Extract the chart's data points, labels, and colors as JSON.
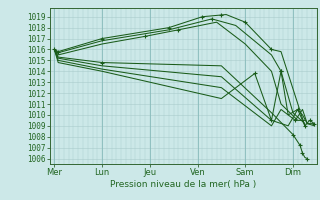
{
  "bg_color": "#cce8e8",
  "grid_color_minor": "#aacccc",
  "grid_color_major": "#88bbbb",
  "line_color": "#1a5c1a",
  "ylabel_values": [
    1006,
    1007,
    1008,
    1009,
    1010,
    1011,
    1012,
    1013,
    1014,
    1015,
    1016,
    1017,
    1018,
    1019
  ],
  "ylim": [
    1005.5,
    1019.8
  ],
  "xlabel": "Pression niveau de la mer( hPa )",
  "xtick_labels": [
    "Mer",
    "Lun",
    "Jeu",
    "Ven",
    "Sam",
    "Dim"
  ],
  "xtick_positions": [
    0,
    1,
    2,
    3,
    4,
    5
  ],
  "xlim": [
    -0.1,
    5.5
  ],
  "lines": [
    {
      "x": [
        0.0,
        0.08,
        1.0,
        2.4,
        3.1,
        3.6,
        4.0,
        4.55,
        4.75,
        5.25
      ],
      "y": [
        1016.0,
        1015.8,
        1017.0,
        1018.0,
        1019.0,
        1019.2,
        1018.5,
        1016.0,
        1015.8,
        1009.0
      ]
    },
    {
      "x": [
        0.0,
        0.08,
        1.0,
        2.4,
        3.3,
        3.8,
        4.55,
        4.75,
        5.0,
        5.25
      ],
      "y": [
        1016.0,
        1015.7,
        1016.8,
        1017.8,
        1018.8,
        1018.2,
        1015.5,
        1014.0,
        1010.2,
        1009.2
      ]
    },
    {
      "x": [
        0.0,
        0.08,
        1.0,
        1.9,
        2.6,
        3.4,
        4.0,
        4.55,
        4.75,
        5.1,
        5.25
      ],
      "y": [
        1016.0,
        1015.5,
        1016.5,
        1017.2,
        1017.8,
        1018.5,
        1016.5,
        1014.0,
        1011.0,
        1009.5,
        1009.5
      ]
    },
    {
      "x": [
        0.0,
        0.08,
        1.0,
        3.5,
        4.55,
        5.0,
        5.15,
        5.2,
        5.25,
        5.3
      ],
      "y": [
        1016.0,
        1015.3,
        1014.8,
        1014.5,
        1010.2,
        1008.2,
        1007.2,
        1006.5,
        1006.1,
        1006.0
      ]
    },
    {
      "x": [
        0.0,
        0.08,
        1.0,
        3.5,
        4.55,
        4.9,
        5.1,
        5.25,
        5.35,
        5.45
      ],
      "y": [
        1016.0,
        1015.2,
        1014.5,
        1013.5,
        1009.5,
        1009.0,
        1010.5,
        1009.0,
        1009.5,
        1009.2
      ]
    },
    {
      "x": [
        0.0,
        0.08,
        1.0,
        3.5,
        4.55,
        4.75,
        4.9,
        5.1,
        5.2,
        5.3,
        5.45
      ],
      "y": [
        1016.0,
        1015.0,
        1014.2,
        1012.5,
        1009.0,
        1010.5,
        1010.0,
        1010.5,
        1010.0,
        1009.2,
        1009.0
      ]
    },
    {
      "x": [
        0.0,
        0.08,
        1.0,
        3.5,
        4.2,
        4.55,
        4.75,
        4.9,
        5.05,
        5.2,
        5.3,
        5.45
      ],
      "y": [
        1016.0,
        1014.8,
        1014.0,
        1011.5,
        1013.8,
        1009.5,
        1014.0,
        1010.0,
        1009.5,
        1010.5,
        1009.2,
        1009.2
      ]
    }
  ],
  "marker_points": [
    [
      0.0,
      1016.0
    ],
    [
      0.08,
      1015.8
    ],
    [
      1.0,
      1017.0
    ],
    [
      1.0,
      1014.8
    ],
    [
      1.9,
      1017.2
    ],
    [
      2.4,
      1018.0
    ],
    [
      2.6,
      1017.8
    ],
    [
      3.1,
      1019.0
    ],
    [
      3.3,
      1018.8
    ],
    [
      3.5,
      1019.2
    ],
    [
      4.0,
      1018.5
    ],
    [
      4.2,
      1013.8
    ],
    [
      4.55,
      1016.0
    ],
    [
      4.55,
      1009.5
    ],
    [
      4.75,
      1014.0
    ],
    [
      4.75,
      1014.0
    ],
    [
      5.0,
      1008.2
    ],
    [
      5.05,
      1009.5
    ],
    [
      5.1,
      1010.5
    ],
    [
      5.15,
      1007.2
    ],
    [
      5.2,
      1006.5
    ],
    [
      5.25,
      1009.0
    ],
    [
      5.3,
      1006.0
    ],
    [
      5.35,
      1009.5
    ],
    [
      5.45,
      1009.2
    ]
  ],
  "spine_color": "#336633",
  "tick_color": "#336633",
  "label_color": "#226622",
  "xlabel_fontsize": 6.5,
  "ytick_fontsize": 5.5,
  "xtick_fontsize": 6.0
}
